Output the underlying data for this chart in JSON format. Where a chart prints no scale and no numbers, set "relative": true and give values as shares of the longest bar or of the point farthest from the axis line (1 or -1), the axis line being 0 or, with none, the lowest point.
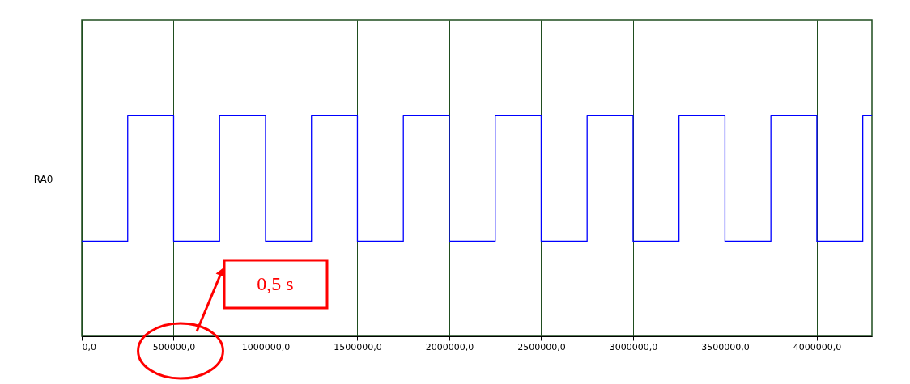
{
  "chart_data": {
    "type": "step",
    "relative": true,
    "ylabel": "RA0",
    "x": [
      0,
      250000,
      500000,
      750000,
      1000000,
      1250000,
      1500000,
      1750000,
      2000000,
      2250000,
      2500000,
      2750000,
      3000000,
      3250000,
      3500000,
      3750000,
      4000000,
      4250000,
      4300000
    ],
    "series": [
      {
        "color": "#0000ff",
        "values": [
          0.43,
          1,
          0.43,
          1,
          0.43,
          1,
          0.43,
          1,
          0.43,
          1,
          0.43,
          1,
          0.43,
          1,
          0.43,
          1,
          0.43,
          1,
          1
        ]
      }
    ],
    "xlim": [
      0,
      4300000
    ],
    "xticks": [
      {
        "value": 0,
        "label": "0,0"
      },
      {
        "value": 500000,
        "label": "500000,0"
      },
      {
        "value": 1000000,
        "label": "1000000,0"
      },
      {
        "value": 1500000,
        "label": "1500000,0"
      },
      {
        "value": 2000000,
        "label": "2000000,0"
      },
      {
        "value": 2500000,
        "label": "2500000,0"
      },
      {
        "value": 3000000,
        "label": "3000000,0"
      },
      {
        "value": 3500000,
        "label": "3500000,0"
      },
      {
        "value": 4000000,
        "label": "4000000,0"
      }
    ],
    "grid": "x",
    "tick_labels": "x",
    "annotations": [
      "0,5 s"
    ]
  }
}
